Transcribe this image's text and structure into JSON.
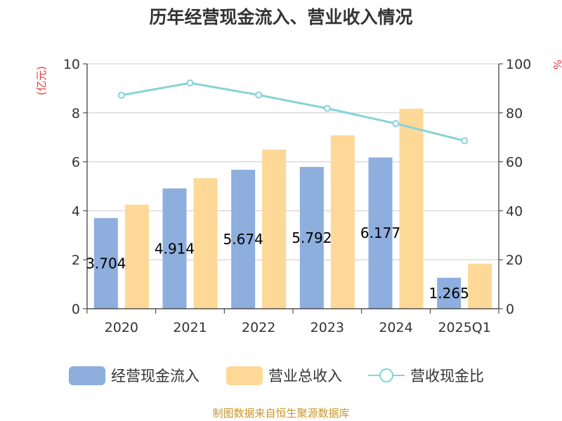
{
  "chart_data": {
    "type": "bar",
    "title": "历年经营现金流入、营业收入情况",
    "categories": [
      "2020",
      "2021",
      "2022",
      "2023",
      "2024",
      "2025Q1"
    ],
    "series": [
      {
        "name": "经营现金流入",
        "axis": "left",
        "kind": "bar",
        "color": "#8eaedd",
        "values": [
          3.704,
          4.914,
          5.674,
          5.792,
          6.177,
          1.265
        ],
        "labels": [
          "3.704",
          "4.914",
          "5.674",
          "5.792",
          "6.177",
          "1.265"
        ]
      },
      {
        "name": "营业总收入",
        "axis": "left",
        "kind": "bar",
        "color": "#fed897",
        "values": [
          4.25,
          5.33,
          6.5,
          7.08,
          8.17,
          1.84
        ]
      },
      {
        "name": "营收现金比",
        "axis": "right",
        "kind": "line",
        "color": "#86d3d8",
        "values": [
          87.2,
          92.2,
          87.3,
          81.8,
          75.6,
          68.6
        ]
      }
    ],
    "left_axis": {
      "unit": "(亿元)",
      "min": 0,
      "max": 10,
      "ticks": [
        0,
        2,
        4,
        6,
        8,
        10
      ]
    },
    "right_axis": {
      "unit": "%",
      "min": 0,
      "max": 100,
      "ticks": [
        0,
        20,
        40,
        60,
        80,
        100
      ]
    },
    "grid": true,
    "legend_position": "bottom"
  },
  "source": "制图数据来自恒生聚源数据库"
}
